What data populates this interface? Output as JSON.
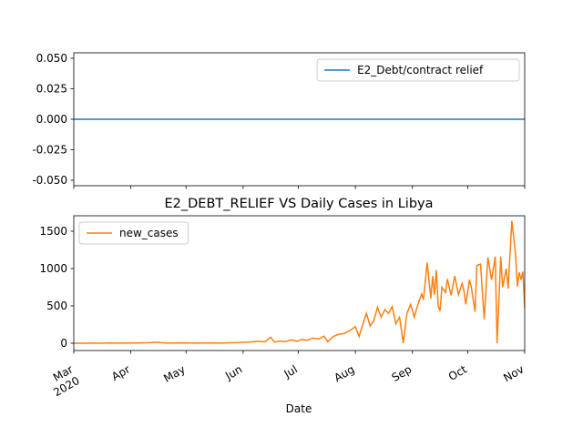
{
  "chart_data": [
    {
      "type": "line",
      "x": [
        0,
        245
      ],
      "series": [
        {
          "name": "E2_Debt/contract relief",
          "color": "#1f77b4",
          "values": [
            0,
            0
          ]
        }
      ],
      "xlim": [
        0,
        245
      ],
      "ylim": [
        -0.0545,
        0.0545
      ],
      "yticks": [
        {
          "value": -0.05,
          "label": "-0.050"
        },
        {
          "value": -0.025,
          "label": "-0.025"
        },
        {
          "value": 0,
          "label": "0.000"
        },
        {
          "value": 0.025,
          "label": "0.025"
        },
        {
          "value": 0.05,
          "label": "0.050"
        }
      ],
      "legend": "upper right"
    },
    {
      "type": "line",
      "title": "E2_DEBT_RELIEF VS Daily Cases in Libya",
      "x_label": "Date",
      "x": [
        0,
        5,
        10,
        15,
        20,
        25,
        30,
        35,
        40,
        45,
        50,
        55,
        60,
        65,
        70,
        75,
        80,
        85,
        90,
        95,
        100,
        104,
        107,
        109,
        112,
        115,
        118,
        121,
        124,
        127,
        130,
        133,
        136,
        138,
        141,
        144,
        147,
        150,
        153,
        155,
        157,
        159,
        161,
        163,
        165,
        167,
        169,
        171,
        173,
        175,
        177,
        178,
        179,
        181,
        183,
        185,
        187,
        189,
        190,
        192,
        194,
        195,
        196,
        197,
        198,
        199,
        200,
        202,
        203,
        205,
        207,
        209,
        211,
        212,
        213,
        215,
        216,
        218,
        219,
        221,
        223,
        225,
        227,
        229,
        230,
        232,
        233,
        235,
        236,
        238,
        240,
        241,
        242,
        243,
        244,
        245
      ],
      "series": [
        {
          "name": "new_cases",
          "color": "#ff7f0e",
          "values": [
            0,
            0,
            1,
            0,
            2,
            1,
            3,
            2,
            5,
            12,
            3,
            2,
            4,
            1,
            2,
            3,
            1,
            5,
            8,
            15,
            25,
            20,
            80,
            15,
            30,
            20,
            45,
            25,
            50,
            40,
            70,
            55,
            95,
            20,
            90,
            120,
            130,
            170,
            220,
            90,
            250,
            400,
            230,
            300,
            480,
            350,
            450,
            400,
            490,
            260,
            350,
            180,
            0,
            400,
            520,
            350,
            520,
            660,
            580,
            1080,
            600,
            900,
            650,
            980,
            500,
            430,
            750,
            680,
            860,
            640,
            900,
            650,
            800,
            700,
            520,
            850,
            750,
            420,
            1040,
            1060,
            320,
            1150,
            850,
            1160,
            0,
            1160,
            750,
            1000,
            730,
            1640,
            1200,
            760,
            950,
            850,
            960,
            470
          ]
        }
      ],
      "xlim": [
        0,
        245
      ],
      "xticks": [
        {
          "value": 0,
          "label": "Mar\n2020"
        },
        {
          "value": 31,
          "label": "Apr"
        },
        {
          "value": 61,
          "label": "May"
        },
        {
          "value": 92,
          "label": "Jun"
        },
        {
          "value": 122,
          "label": "Jul"
        },
        {
          "value": 153,
          "label": "Aug"
        },
        {
          "value": 184,
          "label": "Sep"
        },
        {
          "value": 214,
          "label": "Oct"
        },
        {
          "value": 245,
          "label": "Nov"
        }
      ],
      "ylim": [
        -98,
        1707
      ],
      "yticks": [
        0,
        500,
        1000,
        1500
      ],
      "legend": "upper left"
    }
  ]
}
